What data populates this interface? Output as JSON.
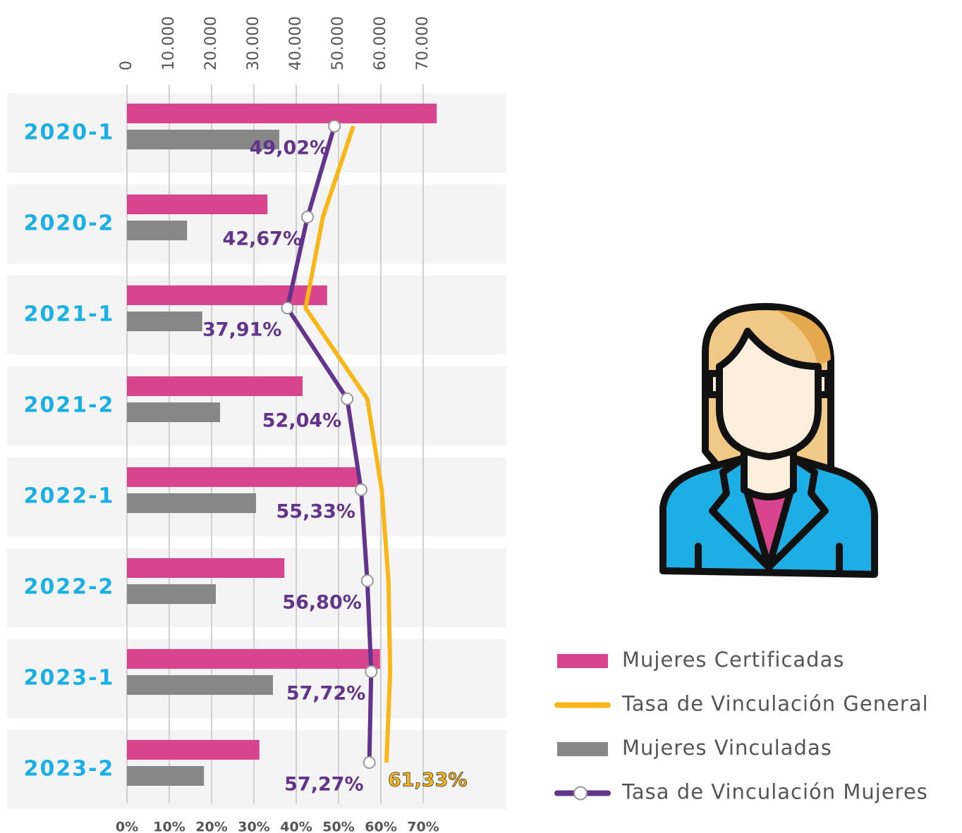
{
  "chart_data": {
    "type": "bar",
    "categories": [
      "2020-1",
      "2020-2",
      "2021-1",
      "2021-2",
      "2022-1",
      "2022-2",
      "2023-1",
      "2023-2"
    ],
    "series": [
      {
        "name": "Mujeres Certificadas",
        "color": "#d9448f",
        "type": "bar",
        "values": [
          73200,
          33200,
          47300,
          41500,
          55000,
          37200,
          59800,
          31300
        ]
      },
      {
        "name": "Tasa de Vinculación General",
        "color": "#f7b719",
        "type": "line",
        "axis": "x2",
        "values": [
          53.5,
          46.3,
          42.2,
          56.8,
          60.2,
          61.8,
          62.2,
          61.33
        ],
        "value_labels": [
          null,
          null,
          null,
          null,
          null,
          null,
          null,
          "61,33%"
        ]
      },
      {
        "name": "Mujeres Vinculadas",
        "color": "#878787",
        "type": "bar",
        "values": [
          36000,
          14200,
          17800,
          22000,
          30500,
          21000,
          34500,
          18200
        ]
      },
      {
        "name": "Tasa de Vinculación Mujeres",
        "color": "#62348c",
        "type": "line",
        "axis": "x2",
        "values": [
          49.02,
          42.67,
          37.91,
          52.04,
          55.33,
          56.8,
          57.72,
          57.27
        ],
        "value_labels": [
          "49,02%",
          "42,67%",
          "37,91%",
          "52,04%",
          "55,33%",
          "56,80%",
          "57,72%",
          "57,27%"
        ]
      }
    ],
    "xlim": [
      0,
      90000
    ],
    "xticks": [
      0,
      {
        "value": 10000,
        "label": "10.000"
      },
      {
        "value": 20000,
        "label": "20.000"
      },
      {
        "value": 30000,
        "label": "30.000"
      },
      {
        "value": 40000,
        "label": "40.000"
      },
      {
        "value": 50000,
        "label": "50.000"
      },
      {
        "value": 60000,
        "label": "60.000"
      },
      {
        "value": 70000,
        "label": "70.000"
      }
    ],
    "x2lim": [
      0,
      90
    ],
    "x2ticks": [
      {
        "value": 0,
        "label": "0%"
      },
      {
        "value": 10,
        "label": "10%"
      },
      {
        "value": 20,
        "label": "20%"
      },
      {
        "value": 30,
        "label": "30%"
      },
      {
        "value": 40,
        "label": "40%"
      },
      {
        "value": 50,
        "label": "50%"
      },
      {
        "value": 60,
        "label": "60%"
      },
      {
        "value": 70,
        "label": "70%"
      }
    ],
    "grid": true
  }
}
